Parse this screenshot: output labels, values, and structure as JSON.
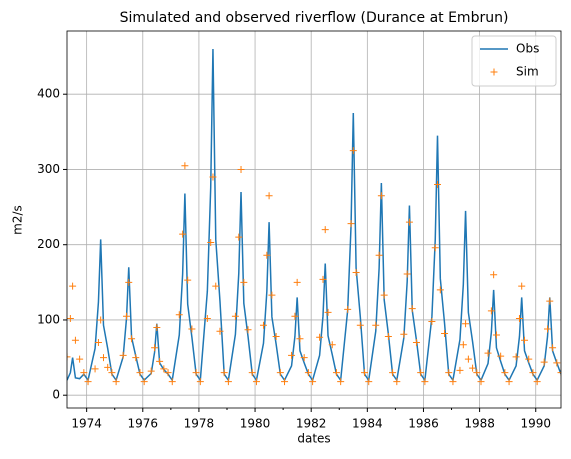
{
  "chart_data": {
    "type": "line",
    "title": "Simulated and observed riverflow (Durance at Embrun)",
    "xlabel": "dates",
    "ylabel": "m2/s",
    "x": [
      1973.3,
      1973.42,
      1973.5,
      1973.6,
      1973.75,
      1973.9,
      1974.05,
      1974.3,
      1974.42,
      1974.5,
      1974.6,
      1974.75,
      1974.9,
      1975.05,
      1975.3,
      1975.42,
      1975.5,
      1975.6,
      1975.75,
      1975.9,
      1976.05,
      1976.3,
      1976.42,
      1976.5,
      1976.6,
      1976.75,
      1976.9,
      1977.05,
      1977.3,
      1977.42,
      1977.5,
      1977.6,
      1977.75,
      1977.9,
      1978.05,
      1978.3,
      1978.42,
      1978.5,
      1978.6,
      1978.75,
      1978.9,
      1979.05,
      1979.3,
      1979.42,
      1979.5,
      1979.6,
      1979.75,
      1979.9,
      1980.05,
      1980.3,
      1980.42,
      1980.5,
      1980.6,
      1980.75,
      1980.9,
      1981.05,
      1981.3,
      1981.42,
      1981.5,
      1981.6,
      1981.75,
      1981.9,
      1982.05,
      1982.3,
      1982.42,
      1982.5,
      1982.6,
      1982.75,
      1982.9,
      1983.05,
      1983.3,
      1983.42,
      1983.5,
      1983.6,
      1983.75,
      1983.9,
      1984.05,
      1984.3,
      1984.42,
      1984.5,
      1984.6,
      1984.75,
      1984.9,
      1985.05,
      1985.3,
      1985.42,
      1985.5,
      1985.6,
      1985.75,
      1985.9,
      1986.05,
      1986.3,
      1986.42,
      1986.5,
      1986.6,
      1986.75,
      1986.9,
      1987.05,
      1987.3,
      1987.42,
      1987.5,
      1987.6,
      1987.75,
      1987.9,
      1988.05,
      1988.3,
      1988.42,
      1988.5,
      1988.6,
      1988.75,
      1988.9,
      1989.05,
      1989.3,
      1989.42,
      1989.5,
      1989.6,
      1989.75,
      1989.9,
      1990.05,
      1990.3,
      1990.42,
      1990.5,
      1990.6,
      1990.75,
      1990.9
    ],
    "series": [
      {
        "name": "Obs",
        "color": "#1f77b4",
        "linestyle": "solid",
        "marker": null,
        "values": [
          20,
          30,
          50,
          23,
          22,
          28,
          20,
          62,
          124,
          207,
          93,
          62,
          28,
          20,
          51,
          102,
          170,
          77,
          52,
          28,
          20,
          29,
          57,
          95,
          43,
          34,
          28,
          20,
          80,
          161,
          268,
          121,
          77,
          28,
          20,
          138,
          276,
          460,
          207,
          125,
          28,
          20,
          81,
          162,
          270,
          122,
          78,
          28,
          20,
          69,
          138,
          230,
          104,
          68,
          28,
          20,
          39,
          78,
          130,
          59,
          43,
          28,
          20,
          53,
          105,
          175,
          79,
          54,
          28,
          20,
          113,
          225,
          375,
          169,
          104,
          28,
          20,
          85,
          169,
          282,
          127,
          81,
          28,
          20,
          76,
          151,
          252,
          113,
          73,
          28,
          20,
          104,
          207,
          345,
          155,
          96,
          28,
          20,
          74,
          147,
          245,
          110,
          71,
          28,
          20,
          42,
          84,
          140,
          63,
          45,
          28,
          20,
          39,
          78,
          130,
          59,
          43,
          28,
          20,
          39,
          78,
          130,
          59,
          43,
          28
        ]
      },
      {
        "name": "Sim",
        "color": "#ff7f0e",
        "linestyle": "none",
        "marker": "+",
        "values": [
          51,
          102,
          145,
          73,
          48,
          30,
          18,
          35,
          70,
          100,
          50,
          37,
          30,
          18,
          53,
          105,
          150,
          75,
          50,
          30,
          18,
          32,
          63,
          90,
          45,
          35,
          30,
          18,
          107,
          214,
          305,
          153,
          88,
          30,
          18,
          102,
          203,
          290,
          145,
          85,
          30,
          18,
          105,
          210,
          300,
          150,
          87,
          30,
          18,
          93,
          186,
          265,
          133,
          78,
          30,
          18,
          53,
          105,
          150,
          75,
          50,
          30,
          18,
          77,
          154,
          220,
          110,
          67,
          30,
          18,
          114,
          228,
          325,
          163,
          93,
          30,
          18,
          93,
          186,
          265,
          133,
          78,
          30,
          18,
          81,
          161,
          230,
          115,
          70,
          30,
          18,
          98,
          196,
          280,
          140,
          82,
          30,
          18,
          33,
          67,
          95,
          48,
          36,
          30,
          18,
          56,
          112,
          160,
          80,
          52,
          30,
          18,
          51,
          102,
          145,
          73,
          48,
          30,
          18,
          44,
          88,
          125,
          63,
          43,
          30
        ]
      }
    ],
    "xlim": [
      1973.3,
      1990.9
    ],
    "ylim": [
      -17,
      484
    ],
    "xticks": [
      1974,
      1976,
      1978,
      1980,
      1982,
      1984,
      1986,
      1988,
      1990
    ],
    "xminorticks": [
      1975,
      1977,
      1979,
      1981,
      1983,
      1985,
      1987,
      1989
    ],
    "yticks": [
      0,
      100,
      200,
      300,
      400
    ],
    "grid": true,
    "legend": "upper right"
  }
}
